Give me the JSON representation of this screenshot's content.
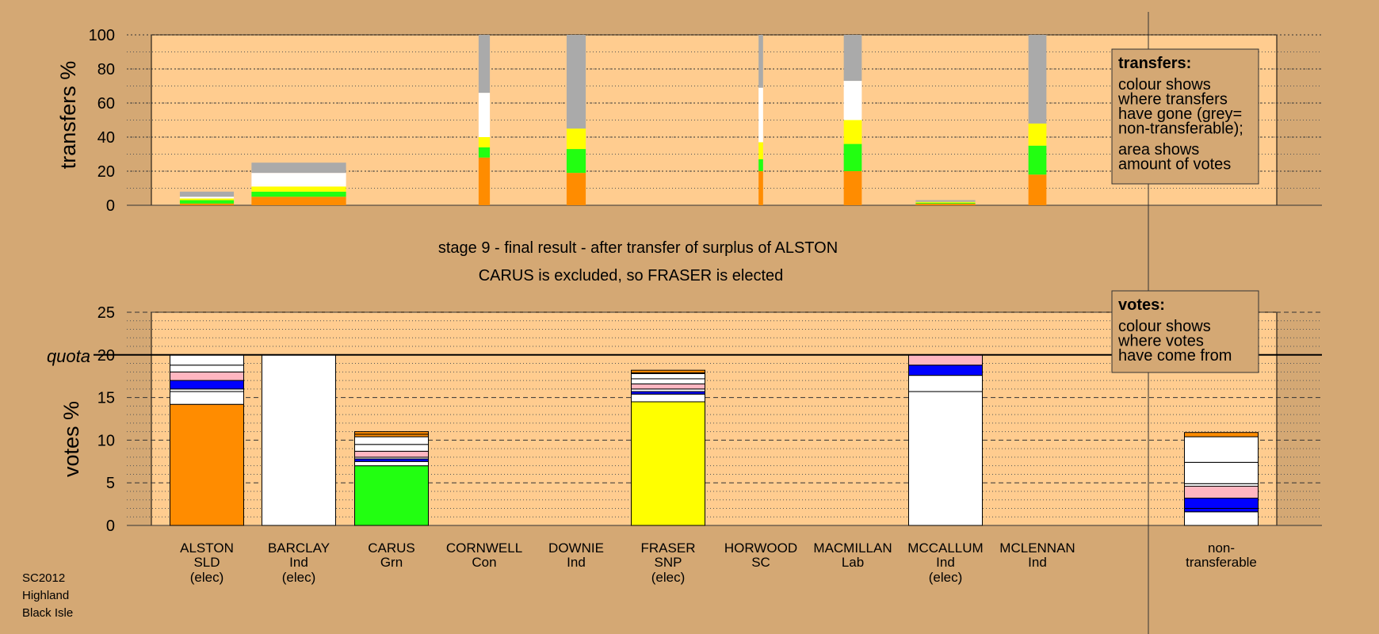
{
  "chart_data": [
    {
      "type": "bar",
      "panel": "transfers",
      "ylabel": "transfers %",
      "ylim": [
        0,
        100
      ],
      "yticks": [
        0,
        20,
        40,
        60,
        80,
        100
      ],
      "grid": true,
      "legend": {
        "title": "transfers:",
        "lines": [
          "colour shows",
          "where transfers",
          "have gone (grey=",
          "non-transferable);",
          "area shows",
          "amount of votes"
        ],
        "placement": "top-right"
      },
      "categories": [
        "ALSTON",
        "BARCLAY",
        "CARUS",
        "CORNWELL",
        "DOWNIE",
        "FRASER",
        "HORWOOD",
        "MACMILLAN",
        "MCCALLUM",
        "MCLENNAN"
      ],
      "bars": [
        {
          "category": "ALSTON",
          "width_share": 0.048,
          "segments": [
            {
              "color": "#FF8C00",
              "value": 1
            },
            {
              "color": "#22FF11",
              "value": 2
            },
            {
              "color": "#FFFF00",
              "value": 1
            },
            {
              "color": "#FFFFFF",
              "value": 1
            },
            {
              "color": "#AAAAAA",
              "value": 3
            }
          ]
        },
        {
          "category": "BARCLAY",
          "width_share": 0.084,
          "segments": [
            {
              "color": "#FF8C00",
              "value": 5
            },
            {
              "color": "#22FF11",
              "value": 3
            },
            {
              "color": "#FFFF00",
              "value": 3
            },
            {
              "color": "#FFFFFF",
              "value": 1
            },
            {
              "color": "#FFFFFF",
              "value": 7
            },
            {
              "color": "#AAAAAA",
              "value": 6
            }
          ]
        },
        {
          "category": "CORNWELL",
          "width_share": 0.01,
          "segments": [
            {
              "color": "#FF8C00",
              "value": 28
            },
            {
              "color": "#22FF11",
              "value": 6
            },
            {
              "color": "#FFFF00",
              "value": 6
            },
            {
              "color": "#FFFFFF",
              "value": 26
            },
            {
              "color": "#AAAAAA",
              "value": 34
            }
          ]
        },
        {
          "category": "DOWNIE",
          "width_share": 0.017,
          "segments": [
            {
              "color": "#FF8C00",
              "value": 19
            },
            {
              "color": "#22FF11",
              "value": 14
            },
            {
              "color": "#FFFF00",
              "value": 12
            },
            {
              "color": "#AAAAAA",
              "value": 55
            }
          ]
        },
        {
          "category": "HORWOOD",
          "width_share": 0.004,
          "segments": [
            {
              "color": "#FF8C00",
              "value": 20
            },
            {
              "color": "#22FF11",
              "value": 7
            },
            {
              "color": "#FFFF00",
              "value": 10
            },
            {
              "color": "#FFFFFF",
              "value": 32
            },
            {
              "color": "#AAAAAA",
              "value": 31
            }
          ]
        },
        {
          "category": "MACMILLAN",
          "width_share": 0.016,
          "segments": [
            {
              "color": "#FF8C00",
              "value": 20
            },
            {
              "color": "#22FF11",
              "value": 16
            },
            {
              "color": "#FFFF00",
              "value": 14
            },
            {
              "color": "#FFFFFF",
              "value": 23
            },
            {
              "color": "#AAAAAA",
              "value": 27
            }
          ]
        },
        {
          "category": "MCCALLUM",
          "width_share": 0.053,
          "segments": [
            {
              "color": "#FF8C00",
              "value": 1
            },
            {
              "color": "#22FF11",
              "value": 0.5
            },
            {
              "color": "#FFFF00",
              "value": 0.5
            },
            {
              "color": "#AAAAAA",
              "value": 1
            }
          ]
        },
        {
          "category": "MCLENNAN",
          "width_share": 0.016,
          "segments": [
            {
              "color": "#FF8C00",
              "value": 18
            },
            {
              "color": "#22FF11",
              "value": 17
            },
            {
              "color": "#FFFF00",
              "value": 13
            },
            {
              "color": "#AAAAAA",
              "value": 52
            }
          ]
        }
      ]
    },
    {
      "type": "bar",
      "panel": "votes",
      "ylabel": "votes %",
      "ylim": [
        0,
        25
      ],
      "yticks": [
        0,
        5,
        10,
        15,
        20,
        25
      ],
      "quota": 20,
      "quota_label": "quota",
      "grid": true,
      "legend": {
        "title": "votes:",
        "lines": [
          "colour shows",
          "where votes",
          "have come from"
        ],
        "placement": "top-right"
      },
      "candidates": [
        {
          "name": "ALSTON",
          "party": "SLD",
          "note": "(elec)"
        },
        {
          "name": "BARCLAY",
          "party": "Ind",
          "note": "(elec)"
        },
        {
          "name": "CARUS",
          "party": "Grn",
          "note": ""
        },
        {
          "name": "CORNWELL",
          "party": "Con",
          "note": ""
        },
        {
          "name": "DOWNIE",
          "party": "Ind",
          "note": ""
        },
        {
          "name": "FRASER",
          "party": "SNP",
          "note": "(elec)"
        },
        {
          "name": "HORWOOD",
          "party": "SC",
          "note": ""
        },
        {
          "name": "MACMILLAN",
          "party": "Lab",
          "note": ""
        },
        {
          "name": "MCCALLUM",
          "party": "Ind",
          "note": "(elec)"
        },
        {
          "name": "MCLENNAN",
          "party": "Ind",
          "note": ""
        },
        {
          "name": "non-",
          "party": "transferable",
          "note": ""
        }
      ],
      "bars": [
        {
          "category": "ALSTON",
          "total": 20,
          "segments": [
            {
              "color": "#FF8C00",
              "value": 14.2
            },
            {
              "color": "#FFFFFF",
              "value": 1.5
            },
            {
              "color": "#FFFFFF",
              "value": 0.3
            },
            {
              "color": "#0000FF",
              "value": 1.0
            },
            {
              "color": "#FFB6C1",
              "value": 1.0
            },
            {
              "color": "#FFFFFF",
              "value": 0.8
            },
            {
              "color": "#FFFFFF",
              "value": 1.2
            }
          ]
        },
        {
          "category": "BARCLAY",
          "total": 20,
          "segments": [
            {
              "color": "#FFFFFF",
              "value": 20
            }
          ]
        },
        {
          "category": "CARUS",
          "total": 11.0,
          "segments": [
            {
              "color": "#22FF11",
              "value": 7.0
            },
            {
              "color": "#FFFFFF",
              "value": 0.5
            },
            {
              "color": "#0000FF",
              "value": 0.3
            },
            {
              "color": "#FFFFFF",
              "value": 0.2
            },
            {
              "color": "#FFB6C1",
              "value": 0.7
            },
            {
              "color": "#FFFFFF",
              "value": 0.8
            },
            {
              "color": "#FFFFFF",
              "value": 0.9
            },
            {
              "color": "#FF8C00",
              "value": 0.3
            },
            {
              "color": "#FF8C00",
              "value": 0.3
            }
          ]
        },
        {
          "category": "FRASER",
          "total": 18.2,
          "segments": [
            {
              "color": "#FFFF00",
              "value": 14.5
            },
            {
              "color": "#FFFFFF",
              "value": 0.9
            },
            {
              "color": "#0000FF",
              "value": 0.3
            },
            {
              "color": "#FFFFFF",
              "value": 0.3
            },
            {
              "color": "#FFB6C1",
              "value": 0.6
            },
            {
              "color": "#FFFFFF",
              "value": 0.6
            },
            {
              "color": "#FFFFFF",
              "value": 0.6
            },
            {
              "color": "#FFB6C1",
              "value": 0.1
            },
            {
              "color": "#FF8C00",
              "value": 0.3
            }
          ]
        },
        {
          "category": "MCCALLUM",
          "total": 20,
          "segments": [
            {
              "color": "#FFFFFF",
              "value": 15.7
            },
            {
              "color": "#FFFFFF",
              "value": 1.9
            },
            {
              "color": "#0000FF",
              "value": 1.2
            },
            {
              "color": "#FFB6C1",
              "value": 1.2
            }
          ]
        },
        {
          "category": "non-transferable",
          "total": 11.0,
          "segments": [
            {
              "color": "#FFFFFF",
              "value": 1.6
            },
            {
              "color": "#0000FF",
              "value": 0.4
            },
            {
              "color": "#0000FF",
              "value": 1.2
            },
            {
              "color": "#FFB6C1",
              "value": 1.4
            },
            {
              "color": "#FFFFFF",
              "value": 0.3
            },
            {
              "color": "#FFFFFF",
              "value": 2.5
            },
            {
              "color": "#FFFFFF",
              "value": 3.0
            },
            {
              "color": "#FF8C00",
              "value": 0.5
            }
          ]
        }
      ]
    }
  ],
  "stage_title": "stage 9 - final result - after transfer of surplus of ALSTON",
  "stage_subtitle": "CARUS is excluded, so FRASER is elected",
  "footer": [
    "SC2012",
    "Highland",
    "Black Isle"
  ],
  "colors": {
    "background": "#D4A874",
    "plot": "#FFCC8F",
    "grey": "#AAAAAA",
    "orange": "#FF8C00",
    "green": "#22FF11",
    "yellow": "#FFFF00",
    "blue": "#0000FF",
    "pink": "#FFB6C1",
    "white": "#FFFFFF"
  }
}
